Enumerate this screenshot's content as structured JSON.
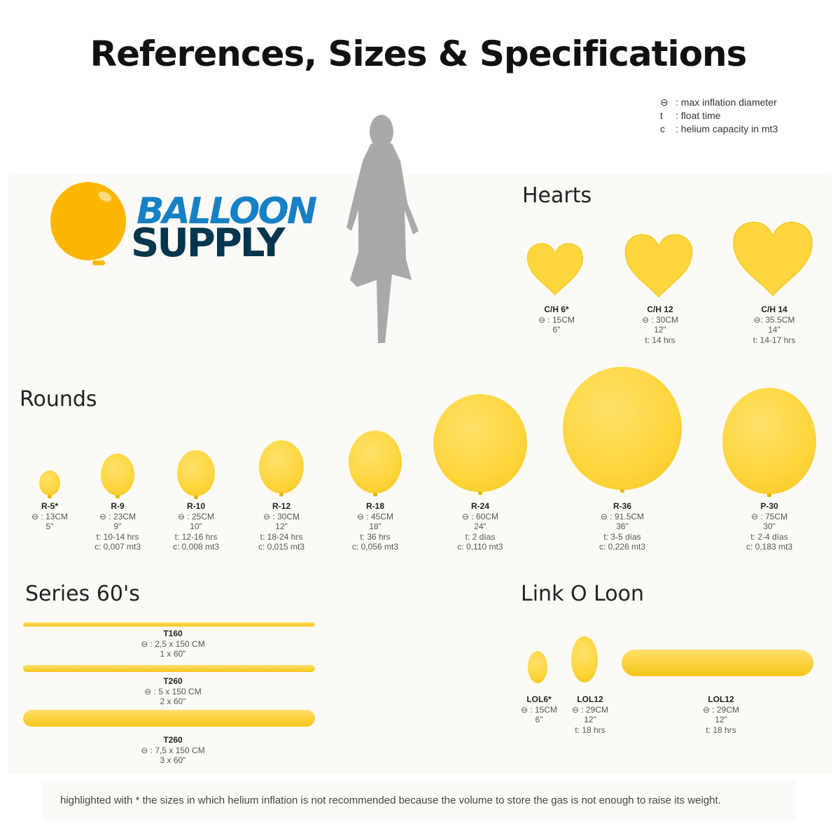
{
  "title": "References, Sizes & Specifications",
  "legend": [
    {
      "symbol": "⊖",
      "text": "max inflation diameter"
    },
    {
      "symbol": "t",
      "text": "float time"
    },
    {
      "symbol": "c",
      "text": "helium capacity in mt3"
    }
  ],
  "logo": {
    "line1": "BALLOON",
    "line2": "SUPPLY",
    "colors": {
      "balloon": "#fbb700",
      "line1": "#1680c4",
      "line2": "#04364d"
    }
  },
  "balloon_color": "#fdd53c",
  "sections": {
    "hearts": "Hearts",
    "rounds": "Rounds",
    "series60": "Series 60's",
    "linkoloon": "Link O Loon"
  },
  "hearts": [
    {
      "code": "C/H 6*",
      "diameter": "⊖ : 15CM",
      "inches": "6\""
    },
    {
      "code": "C/H 12",
      "diameter": "⊖ : 30CM",
      "inches": "12\"",
      "time": "t: 14 hrs"
    },
    {
      "code": "C/H 14",
      "diameter": "⊖: 35.5CM",
      "inches": "14\"",
      "time": "t: 14-17 hrs"
    }
  ],
  "rounds": [
    {
      "code": "R-5*",
      "diameter": "⊖ : 13CM",
      "inches": "5\""
    },
    {
      "code": "R-9",
      "diameter": "⊖ : 23CM",
      "inches": "9\"",
      "time": "t: 10-14 hrs",
      "capacity": "c: 0,007 mt3"
    },
    {
      "code": "R-10",
      "diameter": "⊖ : 25CM",
      "inches": "10\"",
      "time": "t: 12-16 hrs",
      "capacity": "c: 0,008 mt3"
    },
    {
      "code": "R-12",
      "diameter": "⊖ : 30CM",
      "inches": "12\"",
      "time": "t: 18-24 hrs",
      "capacity": "c: 0,015 mt3"
    },
    {
      "code": "R-18",
      "diameter": "⊖ : 45CM",
      "inches": "18\"",
      "time": "t: 36 hrs",
      "capacity": "c: 0,056 mt3"
    },
    {
      "code": "R-24",
      "diameter": "⊖ : 60CM",
      "inches": "24\"",
      "time": "t: 2 días",
      "capacity": "c: 0,110 mt3"
    },
    {
      "code": "R-36",
      "diameter": "⊖ : 91.5CM",
      "inches": "36\"",
      "time": "t: 3-5 días",
      "capacity": "c: 0,226 mt3"
    },
    {
      "code": "P-30",
      "diameter": "⊖ : 75CM",
      "inches": "30\"",
      "time": "t: 2-4 días",
      "capacity": "c: 0,183 mt3"
    }
  ],
  "series60": [
    {
      "code": "T160",
      "diameter": "⊖ : 2,5 x 150 CM",
      "inches": "1 x 60\""
    },
    {
      "code": "T260",
      "diameter": "⊖ : 5 x 150 CM",
      "inches": "2 x 60\""
    },
    {
      "code": "T260",
      "diameter": "⊖ : 7,5 x 150 CM",
      "inches": "3 x 60\""
    }
  ],
  "linkoloon": [
    {
      "code": "LOL6*",
      "diameter": "⊖ : 15CM",
      "inches": "6\""
    },
    {
      "code": "LOL12",
      "diameter": "⊖ : 29CM",
      "inches": "12\"",
      "time": "t: 18 hrs"
    },
    {
      "code": "LOL12",
      "diameter": "⊖ : 29CM",
      "inches": "12\"",
      "time": "t: 18 hrs"
    }
  ],
  "footer": "highlighted with * the sizes in which helium inflation is not recommended because the volume to store the gas is not enough to raise its weight."
}
